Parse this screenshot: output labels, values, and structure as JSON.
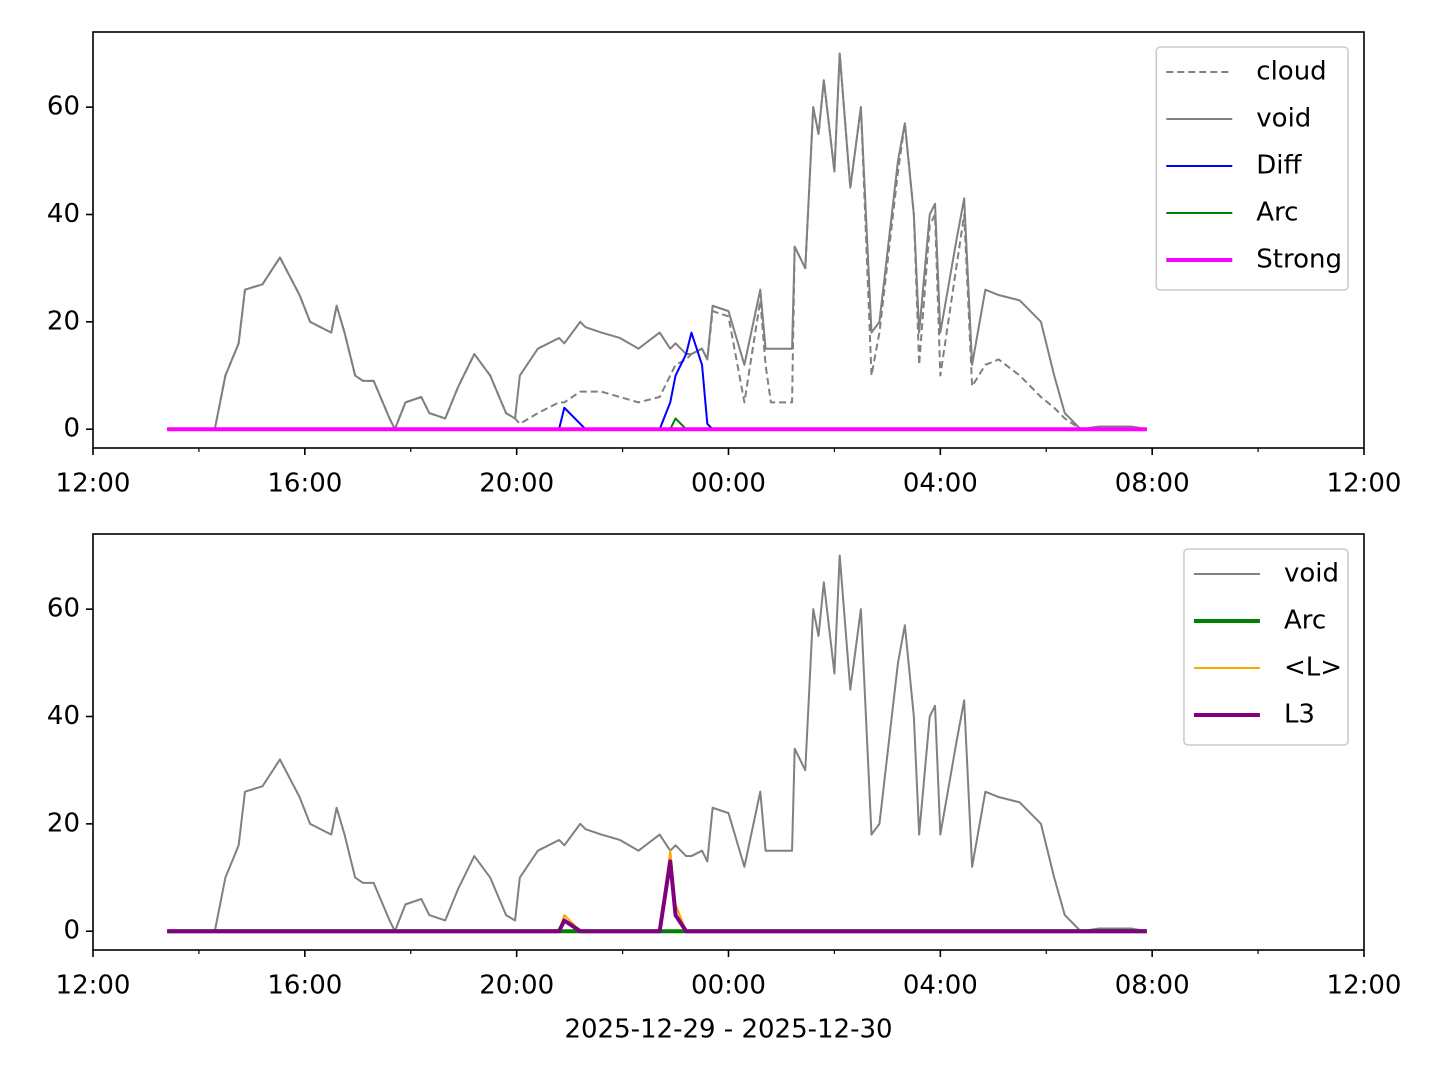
{
  "chart_data": [
    {
      "type": "line",
      "x": [
        13.4,
        14.3,
        14.5,
        14.75,
        14.87,
        15.2,
        15.53,
        15.9,
        16.1,
        16.5,
        16.6,
        16.75,
        16.95,
        17.1,
        17.3,
        17.6,
        17.7,
        17.9,
        18.2,
        18.35,
        18.65,
        18.9,
        19.2,
        19.5,
        19.8,
        19.97,
        20.06,
        20.4,
        20.8,
        20.9,
        21.2,
        21.3,
        21.6,
        21.95,
        22.3,
        22.7,
        22.9,
        23.0,
        23.2,
        23.3,
        23.5,
        23.6,
        23.7,
        24.0,
        24.3,
        24.6,
        24.7,
        24.8,
        25.2,
        25.25,
        25.45,
        25.6,
        25.7,
        25.8,
        26.0,
        26.1,
        26.3,
        26.5,
        26.7,
        26.85,
        27.2,
        27.33,
        27.5,
        27.6,
        27.8,
        27.9,
        28.0,
        28.3,
        28.45,
        28.6,
        28.85,
        29.1,
        29.5,
        29.9,
        30.15,
        30.35,
        30.65,
        31.0,
        31.6,
        31.9
      ],
      "series": [
        {
          "name": "cloud",
          "color": "#808080",
          "width": 2,
          "dash": true,
          "values": [
            0,
            0,
            10,
            16,
            26,
            27,
            32,
            25,
            20,
            18,
            23,
            18,
            10,
            9,
            9,
            2,
            0,
            5,
            6,
            3,
            2,
            8,
            14,
            10,
            3,
            2,
            1,
            3,
            5,
            5,
            7,
            7,
            7,
            6,
            5,
            6,
            10,
            12,
            13,
            14,
            15,
            13,
            22,
            21,
            5,
            24,
            12,
            5,
            5,
            34,
            30,
            60,
            55,
            65,
            48,
            70,
            45,
            60,
            10,
            18,
            48,
            57,
            40,
            12,
            38,
            40,
            10,
            30,
            40,
            8,
            12,
            13,
            10,
            6,
            4,
            2,
            0,
            0.5,
            0.5,
            0
          ]
        },
        {
          "name": "void",
          "color": "#808080",
          "width": 2,
          "dash": false,
          "values": [
            0,
            0,
            10,
            16,
            26,
            27,
            32,
            25,
            20,
            18,
            23,
            18,
            10,
            9,
            9,
            2,
            0,
            5,
            6,
            3,
            2,
            8,
            14,
            10,
            3,
            2,
            10,
            15,
            17,
            16,
            20,
            19,
            18,
            17,
            15,
            18,
            15,
            16,
            14,
            14,
            15,
            13,
            23,
            22,
            12,
            26,
            15,
            15,
            15,
            34,
            30,
            60,
            55,
            65,
            48,
            70,
            45,
            60,
            18,
            20,
            50,
            57,
            40,
            18,
            40,
            42,
            18,
            35,
            43,
            12,
            26,
            25,
            24,
            20,
            10,
            3,
            0,
            0.5,
            0.5,
            0
          ]
        },
        {
          "name": "Diff",
          "color": "#0000ff",
          "width": 2,
          "dash": false,
          "values": [
            0,
            0,
            0,
            0,
            0,
            0,
            0,
            0,
            0,
            0,
            0,
            0,
            0,
            0,
            0,
            0,
            0,
            0,
            0,
            0,
            0,
            0,
            0,
            0,
            0,
            0,
            0,
            0,
            0,
            4,
            1,
            0,
            0,
            0,
            0,
            0,
            5,
            10,
            14,
            18,
            12,
            1,
            0,
            0,
            0,
            0,
            0,
            0,
            0,
            0,
            0,
            0,
            0,
            0,
            0,
            0,
            0,
            0,
            0,
            0,
            0,
            0,
            0,
            0,
            0,
            0,
            0,
            0,
            0,
            0,
            0,
            0,
            0,
            0,
            0,
            0,
            0,
            0,
            0,
            0
          ]
        },
        {
          "name": "Arc",
          "color": "#008000",
          "width": 2,
          "dash": false,
          "values": [
            0,
            0,
            0,
            0,
            0,
            0,
            0,
            0,
            0,
            0,
            0,
            0,
            0,
            0,
            0,
            0,
            0,
            0,
            0,
            0,
            0,
            0,
            0,
            0,
            0,
            0,
            0,
            0,
            0,
            0,
            0,
            0,
            0,
            0,
            0,
            0,
            0,
            2,
            0,
            0,
            0,
            0,
            0,
            0,
            0,
            0,
            0,
            0,
            0,
            0,
            0,
            0,
            0,
            0,
            0,
            0,
            0,
            0,
            0,
            0,
            0,
            0,
            0,
            0,
            0,
            0,
            0,
            0,
            0,
            0,
            0,
            0,
            0,
            0,
            0,
            0,
            0,
            0,
            0,
            0
          ]
        },
        {
          "name": "Strong",
          "color": "#ff00ff",
          "width": 4,
          "dash": false,
          "values": [
            0,
            0,
            0,
            0,
            0,
            0,
            0,
            0,
            0,
            0,
            0,
            0,
            0,
            0,
            0,
            0,
            0,
            0,
            0,
            0,
            0,
            0,
            0,
            0,
            0,
            0,
            0,
            0,
            0,
            0,
            0,
            0,
            0,
            0,
            0,
            0,
            0,
            0,
            0,
            0,
            0,
            0,
            0,
            0,
            0,
            0,
            0,
            0,
            0,
            0,
            0,
            0,
            0,
            0,
            0,
            0,
            0,
            0,
            0,
            0,
            0,
            0,
            0,
            0,
            0,
            0,
            0,
            0,
            0,
            0,
            0,
            0,
            0,
            0,
            0,
            0,
            0,
            0,
            0,
            0
          ]
        }
      ],
      "xlim": [
        12,
        36
      ],
      "xticks": [
        {
          "value": 12,
          "label": "12:00"
        },
        {
          "value": 16,
          "label": "16:00"
        },
        {
          "value": 20,
          "label": "20:00"
        },
        {
          "value": 24,
          "label": "00:00"
        },
        {
          "value": 28,
          "label": "04:00"
        },
        {
          "value": 32,
          "label": "08:00"
        },
        {
          "value": 36,
          "label": "12:00"
        }
      ],
      "xminorticks": [
        14,
        18,
        22,
        26,
        30,
        34
      ],
      "ylim": [
        -3.5,
        74
      ],
      "yticks": [
        0,
        20,
        40,
        60
      ],
      "legend": "upper right"
    },
    {
      "type": "line",
      "x": [
        13.4,
        14.3,
        14.5,
        14.75,
        14.87,
        15.2,
        15.53,
        15.9,
        16.1,
        16.5,
        16.6,
        16.75,
        16.95,
        17.1,
        17.3,
        17.6,
        17.7,
        17.9,
        18.2,
        18.35,
        18.65,
        18.9,
        19.2,
        19.5,
        19.8,
        19.97,
        20.06,
        20.4,
        20.8,
        20.9,
        21.2,
        21.3,
        21.6,
        21.95,
        22.3,
        22.7,
        22.9,
        23.0,
        23.2,
        23.3,
        23.5,
        23.6,
        23.7,
        24.0,
        24.3,
        24.6,
        24.7,
        24.8,
        25.2,
        25.25,
        25.45,
        25.6,
        25.7,
        25.8,
        26.0,
        26.1,
        26.3,
        26.5,
        26.7,
        26.85,
        27.2,
        27.33,
        27.5,
        27.6,
        27.8,
        27.9,
        28.0,
        28.3,
        28.45,
        28.6,
        28.85,
        29.1,
        29.5,
        29.9,
        30.15,
        30.35,
        30.65,
        31.0,
        31.6,
        31.9
      ],
      "series": [
        {
          "name": "void",
          "color": "#808080",
          "width": 2,
          "dash": false,
          "values": [
            0,
            0,
            10,
            16,
            26,
            27,
            32,
            25,
            20,
            18,
            23,
            18,
            10,
            9,
            9,
            2,
            0,
            5,
            6,
            3,
            2,
            8,
            14,
            10,
            3,
            2,
            10,
            15,
            17,
            16,
            20,
            19,
            18,
            17,
            15,
            18,
            15,
            16,
            14,
            14,
            15,
            13,
            23,
            22,
            12,
            26,
            15,
            15,
            15,
            34,
            30,
            60,
            55,
            65,
            48,
            70,
            45,
            60,
            18,
            20,
            50,
            57,
            40,
            18,
            40,
            42,
            18,
            35,
            43,
            12,
            26,
            25,
            24,
            20,
            10,
            3,
            0,
            0.5,
            0.5,
            0
          ]
        },
        {
          "name": "Arc",
          "color": "#008000",
          "width": 4,
          "dash": false,
          "values": [
            0,
            0,
            0,
            0,
            0,
            0,
            0,
            0,
            0,
            0,
            0,
            0,
            0,
            0,
            0,
            0,
            0,
            0,
            0,
            0,
            0,
            0,
            0,
            0,
            0,
            0,
            0,
            0,
            0,
            0,
            0,
            0,
            0,
            0,
            0,
            0,
            0,
            0,
            0,
            0,
            0,
            0,
            0,
            0,
            0,
            0,
            0,
            0,
            0,
            0,
            0,
            0,
            0,
            0,
            0,
            0,
            0,
            0,
            0,
            0,
            0,
            0,
            0,
            0,
            0,
            0,
            0,
            0,
            0,
            0,
            0,
            0,
            0,
            0,
            0,
            0,
            0,
            0,
            0,
            0
          ]
        },
        {
          "name": "<L>",
          "color": "#ffa500",
          "width": 2,
          "dash": false,
          "values": [
            0,
            0,
            0,
            0,
            0,
            0,
            0,
            0,
            0,
            0,
            0,
            0,
            0,
            0,
            0,
            0,
            0,
            0,
            0,
            0,
            0,
            0,
            0,
            0,
            0,
            0,
            0,
            0,
            0,
            3,
            0,
            0,
            0,
            0,
            0,
            0,
            15,
            5,
            0,
            0,
            0,
            0,
            0,
            0,
            0,
            0,
            0,
            0,
            0,
            0,
            0,
            0,
            0,
            0,
            0,
            0,
            0,
            0,
            0,
            0,
            0,
            0,
            0,
            0,
            0,
            0,
            0,
            0,
            0,
            0,
            0,
            0,
            0,
            0,
            0,
            0,
            0,
            0,
            0,
            0
          ]
        },
        {
          "name": "L3",
          "color": "#800080",
          "width": 4,
          "dash": false,
          "values": [
            0,
            0,
            0,
            0,
            0,
            0,
            0,
            0,
            0,
            0,
            0,
            0,
            0,
            0,
            0,
            0,
            0,
            0,
            0,
            0,
            0,
            0,
            0,
            0,
            0,
            0,
            0,
            0,
            0,
            2,
            0,
            0,
            0,
            0,
            0,
            0,
            13,
            3,
            0,
            0,
            0,
            0,
            0,
            0,
            0,
            0,
            0,
            0,
            0,
            0,
            0,
            0,
            0,
            0,
            0,
            0,
            0,
            0,
            0,
            0,
            0,
            0,
            0,
            0,
            0,
            0,
            0,
            0,
            0,
            0,
            0,
            0,
            0,
            0,
            0,
            0,
            0,
            0,
            0,
            0
          ]
        }
      ],
      "xlim": [
        12,
        36
      ],
      "xticks": [
        {
          "value": 12,
          "label": "12:00"
        },
        {
          "value": 16,
          "label": "16:00"
        },
        {
          "value": 20,
          "label": "20:00"
        },
        {
          "value": 24,
          "label": "00:00"
        },
        {
          "value": 28,
          "label": "04:00"
        },
        {
          "value": 32,
          "label": "08:00"
        },
        {
          "value": 36,
          "label": "12:00"
        }
      ],
      "xminorticks": [
        14,
        18,
        22,
        26,
        30,
        34
      ],
      "ylim": [
        -3.5,
        74
      ],
      "yticks": [
        0,
        20,
        40,
        60
      ],
      "legend": "upper right",
      "xlabel": "2025-12-29 - 2025-12-30"
    }
  ]
}
